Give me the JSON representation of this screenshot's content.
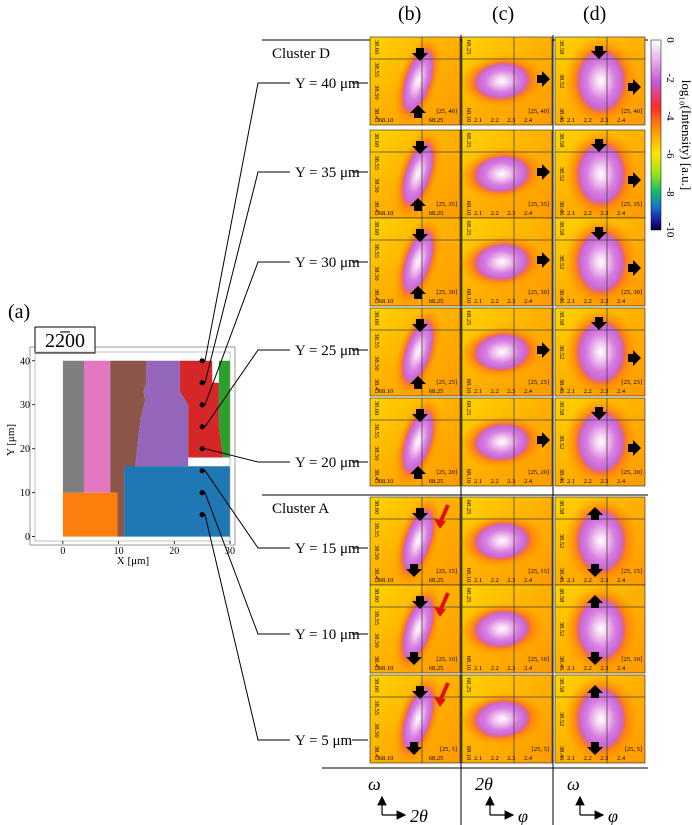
{
  "panel_labels": {
    "a": "(a)",
    "b": "(b)",
    "c": "(c)",
    "d": "(d)"
  },
  "reflection": "22̅00",
  "map": {
    "xlabel": "X [μm]",
    "ylabel": "Y [μm]",
    "xticks": [
      "0",
      "10",
      "20",
      "30"
    ],
    "yticks": [
      "0",
      "10",
      "20",
      "30",
      "40"
    ],
    "xlim": [
      -5,
      30
    ],
    "ylim": [
      -1,
      42
    ],
    "grains": [
      {
        "color": "#7f7f7f"
      },
      {
        "color": "#e377c2"
      },
      {
        "color": "#8c564b"
      },
      {
        "color": "#9467bd"
      },
      {
        "color": "#d62728"
      },
      {
        "color": "#2ca02c"
      },
      {
        "color": "#ff7f0e"
      },
      {
        "color": "#1f77b4"
      }
    ],
    "points": [
      {
        "x": 25,
        "y": 40
      },
      {
        "x": 25,
        "y": 35
      },
      {
        "x": 25,
        "y": 30
      },
      {
        "x": 25,
        "y": 25
      },
      {
        "x": 25,
        "y": 20
      },
      {
        "x": 25,
        "y": 15
      },
      {
        "x": 25,
        "y": 10
      },
      {
        "x": 25,
        "y": 5
      }
    ]
  },
  "clusters": [
    "Cluster D",
    "Cluster A"
  ],
  "rows": [
    {
      "label": "Y = 40 μm",
      "tag": "[25, 40]"
    },
    {
      "label": "Y = 35 μm",
      "tag": "[25, 35]"
    },
    {
      "label": "Y = 30 μm",
      "tag": "[25, 30]"
    },
    {
      "label": "Y = 25 μm",
      "tag": "[25, 25]"
    },
    {
      "label": "Y = 20 μm",
      "tag": "[25, 20]"
    },
    {
      "label": "Y = 15 μm",
      "tag": "[25, 15]"
    },
    {
      "label": "Y = 10 μm",
      "tag": "[25, 10]"
    },
    {
      "label": "Y = 5 μm",
      "tag": "[25, 5]"
    }
  ],
  "ticks": {
    "b_y": [
      "38.60",
      "38.55",
      "38.50",
      "38.45"
    ],
    "b_x": [
      "68.10",
      "68.25"
    ],
    "c_y": [
      "68.25",
      "68.10"
    ],
    "c_x": [
      "2.1",
      "2.2",
      "2.3",
      "2.4"
    ],
    "d_y": [
      "38.58",
      "38.52",
      "38.46"
    ],
    "d_x": [
      "2.1",
      "2.2",
      "2.3",
      "2.4"
    ]
  },
  "colorbar": {
    "label": "log₁₀(Intensity) [a.u.]",
    "ticks": [
      "0",
      "-2",
      "-4",
      "-6",
      "-8",
      "-10"
    ]
  },
  "axis_symbols": {
    "b_up": "ω",
    "b_right": "2θ",
    "c_up": "2θ",
    "c_right": "φ",
    "d_up": "ω",
    "d_right": "φ"
  }
}
